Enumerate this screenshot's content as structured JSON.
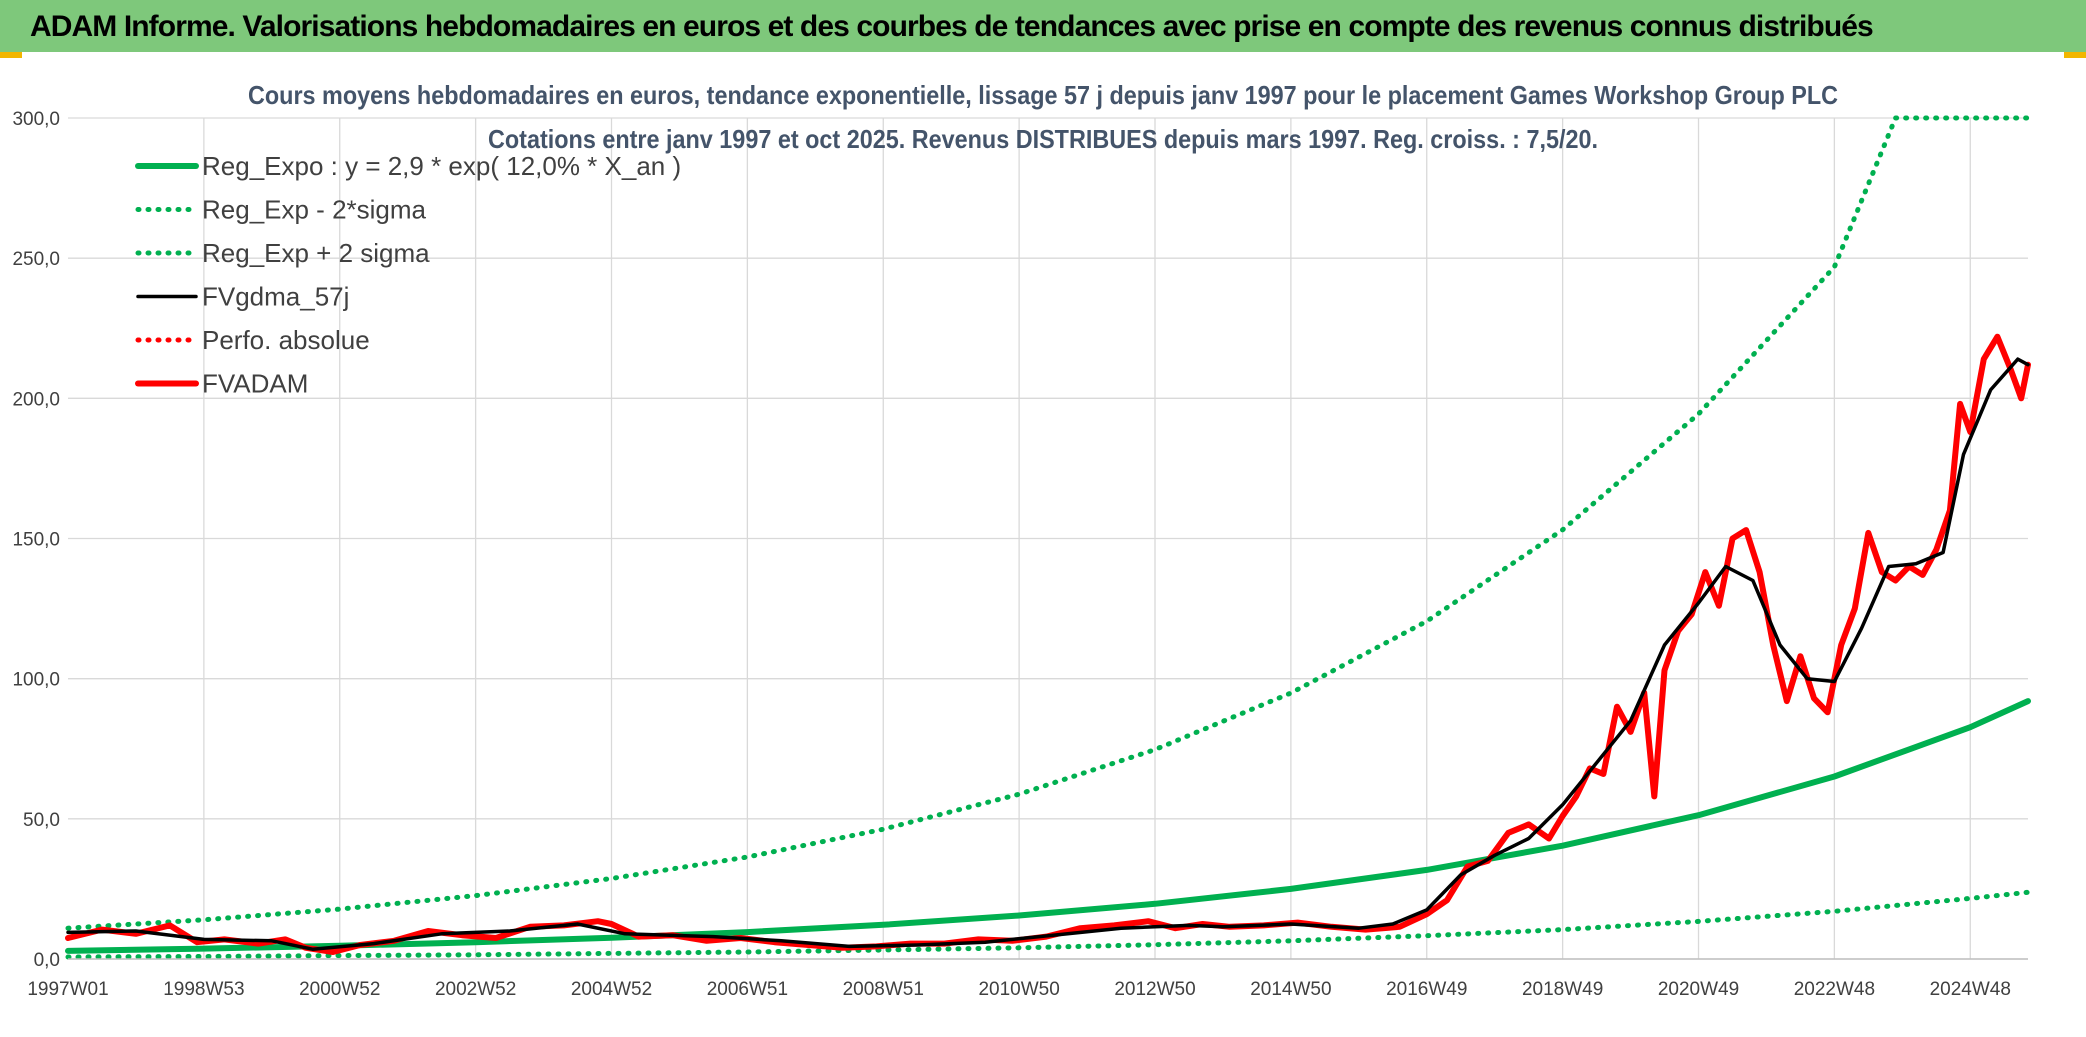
{
  "header": {
    "title": "ADAM Informe. Valorisations hebdomadaires en euros et des courbes de tendances avec prise en compte des revenus connus distribués"
  },
  "colors": {
    "banner": "#7ec87b",
    "trend": "#00b050",
    "price": "#ff0000",
    "smooth": "#000000",
    "grid": "#d9d9d9"
  },
  "chart_data": {
    "type": "line",
    "title_lines": [
      "Cours moyens hebdomadaires en euros, tendance exponentielle, lissage 57 j depuis janv 1997 pour le placement Games Workshop Group PLC",
      "Cotations entre janv 1997 et oct 2025. Revenus DISTRIBUES depuis mars 1997. Reg. croiss. : 7,5/20."
    ],
    "ylim": [
      0,
      300
    ],
    "yticks": [
      "0,0",
      "50,0",
      "100,0",
      "150,0",
      "200,0",
      "250,0",
      "300,0"
    ],
    "xlim": [
      1997.0,
      2025.85
    ],
    "xticks": [
      {
        "label": "1997W01",
        "x": 1997.0
      },
      {
        "label": "1998W53",
        "x": 1999.0
      },
      {
        "label": "2000W52",
        "x": 2001.0
      },
      {
        "label": "2002W52",
        "x": 2003.0
      },
      {
        "label": "2004W52",
        "x": 2005.0
      },
      {
        "label": "2006W51",
        "x": 2007.0
      },
      {
        "label": "2008W51",
        "x": 2009.0
      },
      {
        "label": "2010W50",
        "x": 2011.0
      },
      {
        "label": "2012W50",
        "x": 2013.0
      },
      {
        "label": "2014W50",
        "x": 2015.0
      },
      {
        "label": "2016W49",
        "x": 2017.0
      },
      {
        "label": "2018W49",
        "x": 2019.0
      },
      {
        "label": "2020W49",
        "x": 2021.0
      },
      {
        "label": "2022W48",
        "x": 2023.0
      },
      {
        "label": "2024W48",
        "x": 2025.0
      }
    ],
    "grid": true,
    "legend_position": "top-left",
    "series": [
      {
        "name": "Reg_Expo : y = 2,9 * exp( 12,0% *  X_an )",
        "style": "solid-thick",
        "color": "#00b050",
        "x": [
          1997.0,
          1999.0,
          2001.0,
          2003.0,
          2005.0,
          2007.0,
          2009.0,
          2011.0,
          2013.0,
          2015.0,
          2017.0,
          2019.0,
          2021.0,
          2023.0,
          2025.0,
          2025.85
        ],
        "y": [
          2.9,
          3.7,
          4.7,
          6.0,
          7.6,
          9.6,
          12.2,
          15.5,
          19.7,
          25.0,
          31.8,
          40.4,
          51.3,
          65.1,
          82.7,
          92.0
        ]
      },
      {
        "name": "Reg_Exp - 2*sigma",
        "style": "dotted",
        "color": "#00b050",
        "x": [
          1997.0,
          1999.0,
          2001.0,
          2003.0,
          2005.0,
          2007.0,
          2009.0,
          2011.0,
          2013.0,
          2015.0,
          2017.0,
          2019.0,
          2021.0,
          2023.0,
          2025.0,
          2025.85
        ],
        "y": [
          0.7,
          0.9,
          1.2,
          1.5,
          2.0,
          2.5,
          3.2,
          4.0,
          5.1,
          6.5,
          8.3,
          10.5,
          13.4,
          17.0,
          21.6,
          23.8
        ]
      },
      {
        "name": "Reg_Exp + 2 sigma",
        "style": "dotted",
        "color": "#00b050",
        "x": [
          1997.0,
          1999.0,
          2001.0,
          2003.0,
          2005.0,
          2007.0,
          2009.0,
          2011.0,
          2013.0,
          2015.0,
          2017.0,
          2019.0,
          2021.0,
          2023.0,
          2023.9,
          2025.85
        ],
        "y": [
          11.0,
          14.0,
          17.8,
          22.6,
          28.7,
          36.4,
          46.3,
          58.8,
          74.7,
          94.9,
          120.5,
          153.1,
          194.4,
          246.9,
          300.0,
          300.0
        ]
      },
      {
        "name": "FVgdma_57j",
        "style": "solid",
        "color": "#000000",
        "x": [
          1997.0,
          1998.0,
          1999.0,
          2000.0,
          2000.6,
          2001.5,
          2002.5,
          2003.5,
          2004.5,
          2005.2,
          2006.5,
          2007.5,
          2008.5,
          2009.5,
          2010.5,
          2011.5,
          2012.5,
          2013.5,
          2014.0,
          2015.0,
          2016.0,
          2016.5,
          2017.0,
          2017.5,
          2018.0,
          2018.5,
          2019.0,
          2019.5,
          2020.0,
          2020.5,
          2021.0,
          2021.4,
          2021.8,
          2022.2,
          2022.6,
          2023.0,
          2023.4,
          2023.8,
          2024.2,
          2024.6,
          2024.9,
          2025.3,
          2025.7,
          2025.85
        ],
        "y": [
          9.5,
          10.0,
          7.0,
          6.5,
          3.5,
          5.5,
          9.0,
          10.0,
          12.5,
          9.0,
          8.0,
          6.5,
          4.5,
          5.0,
          6.0,
          8.5,
          11.0,
          12.0,
          11.5,
          12.5,
          11.0,
          12.5,
          17.5,
          30.0,
          37.0,
          43.0,
          55.0,
          70.0,
          85.0,
          112.0,
          127.0,
          140.0,
          135.0,
          112.0,
          100.0,
          99.0,
          118.0,
          140.0,
          141.0,
          145.0,
          180.0,
          203.0,
          214.0,
          212.0
        ]
      },
      {
        "name": "Perfo. absolue",
        "style": "dotted",
        "color": "#ff0000",
        "x": [],
        "y": []
      },
      {
        "name": "FVADAM",
        "style": "solid-thick",
        "color": "#ff0000",
        "x": [
          1997.0,
          1997.5,
          1998.0,
          1998.5,
          1998.9,
          1999.3,
          1999.8,
          2000.2,
          2000.5,
          2000.9,
          2001.3,
          2001.8,
          2002.3,
          2002.8,
          2003.3,
          2003.8,
          2004.3,
          2004.8,
          2005.0,
          2005.4,
          2005.9,
          2006.4,
          2006.9,
          2007.4,
          2007.9,
          2008.4,
          2008.9,
          2009.4,
          2009.9,
          2010.4,
          2010.9,
          2011.4,
          2011.9,
          2012.4,
          2012.9,
          2013.3,
          2013.7,
          2014.1,
          2014.6,
          2015.1,
          2015.6,
          2016.1,
          2016.6,
          2017.0,
          2017.3,
          2017.6,
          2017.9,
          2018.2,
          2018.5,
          2018.8,
          2019.0,
          2019.2,
          2019.4,
          2019.6,
          2019.8,
          2020.0,
          2020.2,
          2020.35,
          2020.5,
          2020.7,
          2020.9,
          2021.1,
          2021.3,
          2021.5,
          2021.7,
          2021.9,
          2022.1,
          2022.3,
          2022.5,
          2022.7,
          2022.9,
          2023.1,
          2023.3,
          2023.5,
          2023.7,
          2023.9,
          2024.1,
          2024.3,
          2024.5,
          2024.7,
          2024.85,
          2025.0,
          2025.2,
          2025.4,
          2025.6,
          2025.75,
          2025.85
        ],
        "y": [
          7.5,
          10.5,
          9.0,
          12.0,
          6.0,
          7.0,
          5.5,
          7.0,
          4.0,
          2.5,
          5.0,
          6.5,
          10.0,
          8.5,
          7.5,
          11.5,
          12.0,
          13.5,
          12.5,
          8.0,
          8.5,
          6.5,
          7.5,
          6.0,
          5.0,
          4.0,
          4.5,
          5.5,
          5.5,
          7.0,
          6.5,
          8.0,
          11.0,
          12.0,
          13.5,
          11.0,
          12.5,
          11.5,
          12.0,
          13.0,
          11.5,
          10.5,
          11.5,
          16.0,
          21.0,
          33.0,
          35.0,
          45.0,
          48.0,
          43.0,
          51.0,
          58.0,
          68.0,
          66.0,
          90.0,
          81.0,
          95.0,
          58.0,
          103.0,
          117.0,
          123.0,
          138.0,
          126.0,
          150.0,
          153.0,
          138.0,
          112.0,
          92.0,
          108.0,
          93.0,
          88.0,
          112.0,
          125.0,
          152.0,
          138.0,
          135.0,
          140.0,
          137.0,
          146.0,
          160.0,
          198.0,
          188.0,
          214.0,
          222.0,
          210.0,
          200.0,
          212.0
        ]
      }
    ]
  }
}
